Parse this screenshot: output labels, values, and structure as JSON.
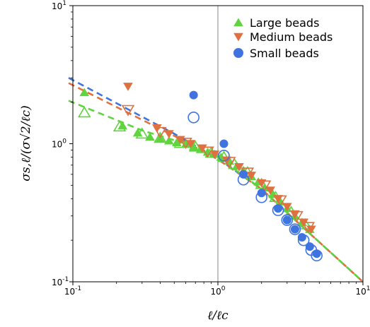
{
  "chart_data": {
    "type": "scatter",
    "title": "",
    "xlabel": "ℓ/ℓc",
    "ylabel": "σs,ℓ/(σ√2/ℓc)",
    "xscale": "log",
    "yscale": "log",
    "xlim": [
      0.1,
      10
    ],
    "ylim": [
      0.1,
      10
    ],
    "x_ticks": [
      0.1,
      1,
      10
    ],
    "y_ticks": [
      0.1,
      1,
      10
    ],
    "grid": false,
    "legend_position": "top-right",
    "vline_x": 1,
    "colors": {
      "large": "#5fd43f",
      "medium": "#e0703f",
      "small": "#3f74e0",
      "vline": "#9a9a9a"
    },
    "series": [
      {
        "name": "Large beads",
        "key": "large",
        "marker": "triangle-up",
        "filled": [
          [
            0.12,
            2.35
          ],
          [
            0.22,
            1.35
          ],
          [
            0.28,
            1.2
          ],
          [
            0.34,
            1.12
          ],
          [
            0.4,
            1.09
          ],
          [
            0.46,
            1.05
          ],
          [
            0.52,
            1.02
          ],
          [
            0.6,
            0.99
          ],
          [
            0.68,
            0.95
          ],
          [
            0.76,
            0.91
          ],
          [
            0.85,
            0.87
          ],
          [
            0.95,
            0.84
          ],
          [
            1.05,
            0.8
          ],
          [
            1.2,
            0.75
          ],
          [
            1.35,
            0.69
          ],
          [
            1.5,
            0.64
          ],
          [
            1.7,
            0.58
          ],
          [
            1.9,
            0.53
          ],
          [
            2.1,
            0.48
          ],
          [
            2.4,
            0.43
          ],
          [
            2.7,
            0.38
          ],
          [
            3.0,
            0.34
          ],
          [
            3.4,
            0.3
          ],
          [
            3.8,
            0.27
          ],
          [
            4.3,
            0.24
          ]
        ],
        "open": [
          [
            0.12,
            1.68
          ],
          [
            0.21,
            1.33
          ],
          [
            0.3,
            1.18
          ],
          [
            0.4,
            1.1
          ],
          [
            0.55,
            1.01
          ],
          [
            0.7,
            0.95
          ],
          [
            0.9,
            0.86
          ],
          [
            1.1,
            0.8
          ],
          [
            1.3,
            0.71
          ],
          [
            1.6,
            0.62
          ],
          [
            2.0,
            0.51
          ],
          [
            2.5,
            0.41
          ],
          [
            3.2,
            0.32
          ],
          [
            4.0,
            0.26
          ]
        ]
      },
      {
        "name": "Medium beads",
        "key": "medium",
        "marker": "triangle-down",
        "filled": [
          [
            0.24,
            2.6
          ],
          [
            0.38,
            1.3
          ],
          [
            0.46,
            1.18
          ],
          [
            0.55,
            1.07
          ],
          [
            0.65,
            1.0
          ],
          [
            0.78,
            0.93
          ],
          [
            0.95,
            0.84
          ],
          [
            1.15,
            0.76
          ],
          [
            1.4,
            0.68
          ],
          [
            1.7,
            0.59
          ],
          [
            2.0,
            0.52
          ],
          [
            2.3,
            0.46
          ],
          [
            2.6,
            0.4
          ],
          [
            3.0,
            0.35
          ],
          [
            3.4,
            0.31
          ],
          [
            3.9,
            0.27
          ],
          [
            4.4,
            0.24
          ]
        ],
        "open": [
          [
            0.24,
            1.76
          ],
          [
            0.4,
            1.22
          ],
          [
            0.6,
            1.02
          ],
          [
            0.85,
            0.88
          ],
          [
            1.2,
            0.74
          ],
          [
            1.6,
            0.62
          ],
          [
            2.1,
            0.5
          ],
          [
            2.7,
            0.39
          ],
          [
            3.5,
            0.3
          ],
          [
            4.2,
            0.25
          ]
        ]
      },
      {
        "name": "Small beads",
        "key": "small",
        "marker": "circle",
        "filled": [
          [
            0.68,
            2.25
          ],
          [
            1.1,
            1.0
          ],
          [
            1.5,
            0.6
          ],
          [
            2.0,
            0.44
          ],
          [
            2.6,
            0.34
          ],
          [
            3.0,
            0.28
          ],
          [
            3.4,
            0.24
          ],
          [
            3.8,
            0.21
          ],
          [
            4.3,
            0.18
          ],
          [
            4.8,
            0.16
          ]
        ],
        "open": [
          [
            0.68,
            1.55
          ],
          [
            1.1,
            0.82
          ],
          [
            1.5,
            0.55
          ],
          [
            2.0,
            0.41
          ],
          [
            2.6,
            0.33
          ],
          [
            3.0,
            0.28
          ],
          [
            3.4,
            0.24
          ],
          [
            3.9,
            0.2
          ],
          [
            4.4,
            0.17
          ],
          [
            4.8,
            0.155
          ]
        ]
      }
    ],
    "fit_lines": [
      {
        "key": "small",
        "style": "dashed",
        "points": [
          [
            0.09,
            3.0
          ],
          [
            0.5,
            1.18
          ],
          [
            1.0,
            0.78
          ],
          [
            2.0,
            0.47
          ],
          [
            4.0,
            0.24
          ],
          [
            10.0,
            0.1
          ]
        ]
      },
      {
        "key": "medium",
        "style": "dashed",
        "points": [
          [
            0.09,
            2.75
          ],
          [
            0.5,
            1.14
          ],
          [
            1.0,
            0.77
          ],
          [
            2.0,
            0.47
          ],
          [
            4.0,
            0.24
          ],
          [
            10.0,
            0.1
          ]
        ]
      },
      {
        "key": "large",
        "style": "dashed",
        "points": [
          [
            0.09,
            2.05
          ],
          [
            0.3,
            1.25
          ],
          [
            0.6,
            1.0
          ],
          [
            1.0,
            0.8
          ],
          [
            2.0,
            0.47
          ],
          [
            4.0,
            0.24
          ],
          [
            10.0,
            0.1
          ]
        ]
      }
    ]
  }
}
